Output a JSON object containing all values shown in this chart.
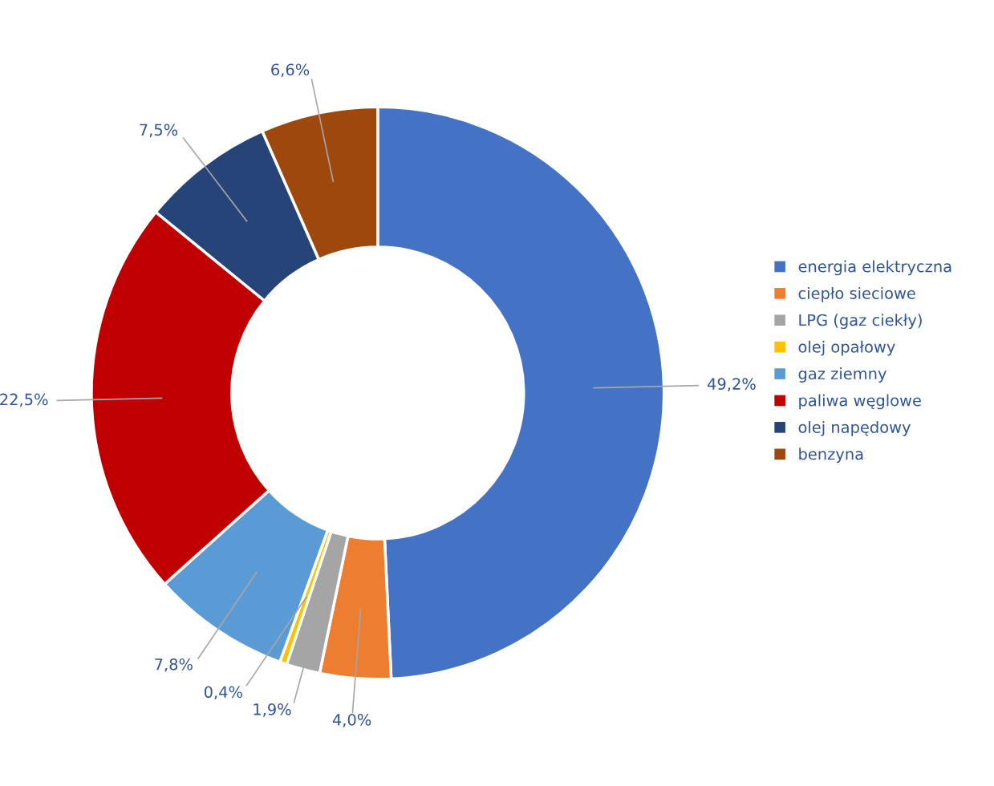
{
  "chart_data": {
    "type": "donut",
    "categories": [
      "energia elektryczna",
      "ciepło sieciowe",
      "LPG (gaz ciekły)",
      "olej opałowy",
      "gaz ziemny",
      "paliwa węglowe",
      "olej napędowy",
      "benzyna"
    ],
    "values": [
      49.2,
      4.0,
      1.9,
      0.4,
      7.8,
      22.5,
      7.5,
      6.6
    ],
    "colors": [
      "#4472c4",
      "#ed7d31",
      "#a5a5a5",
      "#ffc000",
      "#5b9bd5",
      "#c00000",
      "#264478",
      "#9e480e"
    ],
    "value_labels": [
      "49,2%",
      "4,0%",
      "1,9%",
      "0,4%",
      "7,8%",
      "22,5%",
      "7,5%",
      "6,6%"
    ],
    "legend": "right"
  }
}
